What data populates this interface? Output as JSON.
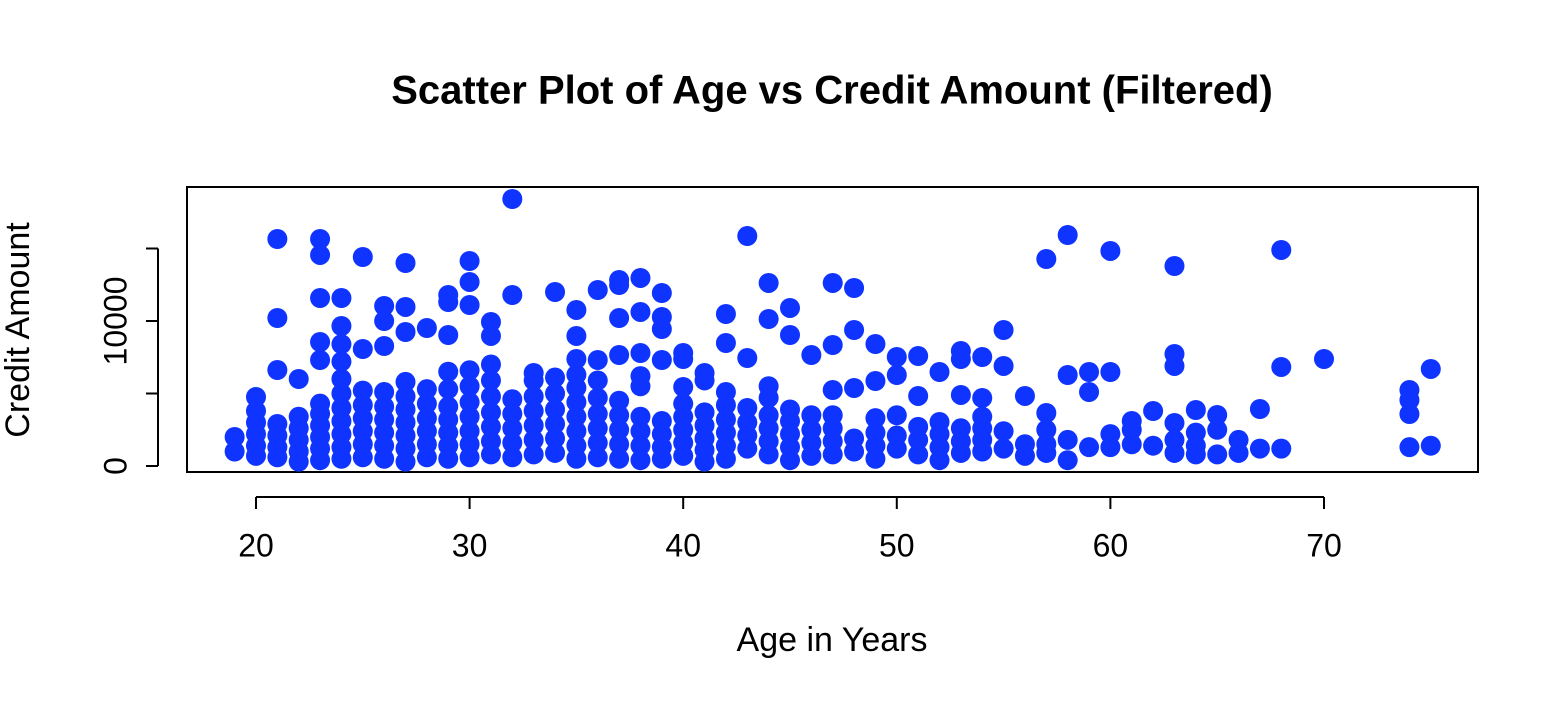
{
  "chart_data": {
    "type": "scatter",
    "title": "Scatter Plot of Age vs Credit Amount (Filtered)",
    "x_label": "Age in Years",
    "y_label": "Credit Amount",
    "color": "#1034ff",
    "xlim": [
      16.77,
      77.21
    ],
    "ylim": [
      -414,
      19241
    ],
    "xticks": [
      20,
      30,
      40,
      50,
      60,
      70
    ],
    "yticks": [
      0,
      5000,
      10000,
      15000
    ],
    "ytick_label_every": 2,
    "x": [
      32,
      21,
      23,
      23,
      25,
      27,
      30,
      30,
      30,
      43,
      58,
      57,
      60,
      63,
      68,
      37,
      37,
      38,
      36,
      34,
      39,
      32,
      29,
      29,
      23,
      24,
      26,
      27,
      44,
      47,
      48,
      45,
      35,
      38,
      37,
      39,
      42,
      21,
      26,
      44,
      31,
      31,
      39,
      28,
      24,
      48,
      55,
      35,
      29,
      45,
      27,
      23,
      49,
      47,
      42,
      25,
      26,
      50,
      51,
      53,
      53,
      54,
      63,
      63,
      70,
      40,
      40,
      43,
      46,
      35,
      36,
      37,
      38,
      39,
      23,
      21,
      33,
      55,
      68,
      75,
      52,
      59,
      60,
      58,
      41,
      22,
      49,
      50,
      47,
      48,
      59,
      74,
      74,
      74,
      56,
      51,
      53,
      54,
      20,
      40,
      57,
      62,
      64,
      67,
      65,
      61,
      63,
      52,
      56,
      56,
      57,
      57,
      57,
      58,
      58,
      59,
      60,
      60,
      61,
      61,
      62,
      63,
      63,
      64,
      64,
      64,
      65,
      65,
      66,
      66,
      67,
      68,
      74,
      75,
      19,
      19,
      20,
      20,
      20,
      20,
      20,
      21,
      21,
      21,
      21,
      22,
      22,
      22,
      22,
      22,
      23,
      23,
      23,
      23,
      23,
      23,
      24,
      24,
      24,
      24,
      24,
      24,
      24,
      24,
      24,
      25,
      25,
      25,
      25,
      25,
      25,
      26,
      26,
      26,
      26,
      26,
      26,
      27,
      27,
      27,
      27,
      27,
      27,
      27,
      28,
      28,
      28,
      28,
      28,
      28,
      29,
      29,
      29,
      29,
      29,
      29,
      29,
      30,
      30,
      30,
      30,
      30,
      30,
      30,
      31,
      31,
      31,
      31,
      31,
      31,
      31,
      32,
      32,
      32,
      32,
      32,
      33,
      33,
      33,
      33,
      33,
      33,
      34,
      34,
      34,
      34,
      34,
      34,
      35,
      35,
      35,
      35,
      35,
      35,
      35,
      36,
      36,
      36,
      36,
      36,
      36,
      37,
      37,
      37,
      37,
      37,
      38,
      38,
      38,
      38,
      38,
      38,
      39,
      39,
      39,
      39,
      40,
      40,
      40,
      40,
      40,
      41,
      41,
      41,
      41,
      41,
      41,
      42,
      42,
      42,
      42,
      42,
      42,
      43,
      43,
      43,
      43,
      44,
      44,
      44,
      44,
      44,
      44,
      45,
      45,
      45,
      45,
      45,
      46,
      46,
      46,
      46,
      47,
      47,
      47,
      47,
      48,
      48,
      49,
      49,
      49,
      49,
      50,
      50,
      50,
      51,
      51,
      51,
      52,
      52,
      52,
      53,
      53,
      53,
      54,
      54,
      54,
      54,
      55,
      55
    ],
    "values": [
      18414,
      15655,
      15655,
      14552,
      14414,
      14000,
      14138,
      12690,
      11103,
      15862,
      15931,
      14276,
      14828,
      13793,
      14897,
      12828,
      12483,
      12966,
      12138,
      12000,
      11931,
      11793,
      11793,
      11310,
      11586,
      11586,
      11034,
      10966,
      12621,
      12621,
      12276,
      10897,
      10759,
      10621,
      10207,
      10276,
      10483,
      10207,
      10000,
      10138,
      9931,
      8966,
      9448,
      9517,
      9655,
      9379,
      9379,
      8966,
      9034,
      9034,
      9241,
      8552,
      8414,
      8345,
      8483,
      8069,
      8276,
      7517,
      7586,
      7931,
      7379,
      7517,
      7724,
      6897,
      7379,
      7793,
      7379,
      7448,
      7655,
      7379,
      7310,
      7655,
      7793,
      7310,
      7310,
      6621,
      6414,
      6897,
      6828,
      6690,
      6483,
      6483,
      6483,
      6276,
      6414,
      6000,
      5862,
      6276,
      5241,
      5379,
      5103,
      5241,
      4552,
      3586,
      4828,
      4828,
      4897,
      4690,
      4759,
      5448,
      3655,
      3793,
      3862,
      3931,
      3517,
      3103,
      2966,
      3034,
      1500,
      700,
      2500,
      1500,
      900,
      1800,
      400,
      1300,
      2200,
      1300,
      2500,
      1500,
      1400,
      1800,
      900,
      2300,
      1400,
      800,
      2500,
      800,
      1800,
      900,
      1200,
      1200,
      1300,
      1400,
      1000,
      2000,
      700,
      1400,
      2200,
      3000,
      3800,
      600,
      1300,
      2100,
      2900,
      300,
      1000,
      1800,
      2600,
      3400,
      400,
      1200,
      2000,
      2800,
      3600,
      4300,
      500,
      1300,
      2200,
      3100,
      4000,
      5000,
      6000,
      7200,
      8400,
      600,
      1500,
      2400,
      3300,
      4200,
      5200,
      500,
      1400,
      2300,
      3200,
      4100,
      5100,
      300,
      1200,
      2100,
      3000,
      3900,
      4800,
      5800,
      600,
      1500,
      2400,
      3300,
      4300,
      5300,
      500,
      1400,
      2300,
      3200,
      4100,
      5300,
      6500,
      600,
      1500,
      2400,
      3400,
      4400,
      5500,
      6600,
      800,
      1700,
      2700,
      3700,
      4800,
      5900,
      7000,
      600,
      1600,
      2600,
      3600,
      4600,
      800,
      1800,
      2800,
      3800,
      4800,
      5900,
      900,
      1900,
      2900,
      3900,
      5000,
      6100,
      500,
      1400,
      2400,
      3400,
      4400,
      5400,
      6300,
      600,
      1600,
      2600,
      3600,
      4700,
      5900,
      500,
      1500,
      2500,
      3500,
      4500,
      400,
      1400,
      2400,
      3400,
      5500,
      6200,
      500,
      1300,
      2200,
      3100,
      700,
      1600,
      2500,
      3400,
      4300,
      300,
      1100,
      1900,
      2800,
      3700,
      5900,
      500,
      1400,
      2300,
      3200,
      4200,
      5100,
      1200,
      2100,
      3000,
      4000,
      800,
      1700,
      2600,
      3500,
      4700,
      5500,
      400,
      1300,
      2200,
      3100,
      3900,
      700,
      1600,
      2500,
      3500,
      800,
      1700,
      2600,
      3500,
      1000,
      1900,
      500,
      1400,
      2300,
      3300,
      1200,
      2100,
      3500,
      800,
      1800,
      2700,
      400,
      1300,
      2200,
      900,
      1700,
      2600,
      1000,
      1800,
      2600,
      3400,
      1200,
      2400
    ]
  }
}
